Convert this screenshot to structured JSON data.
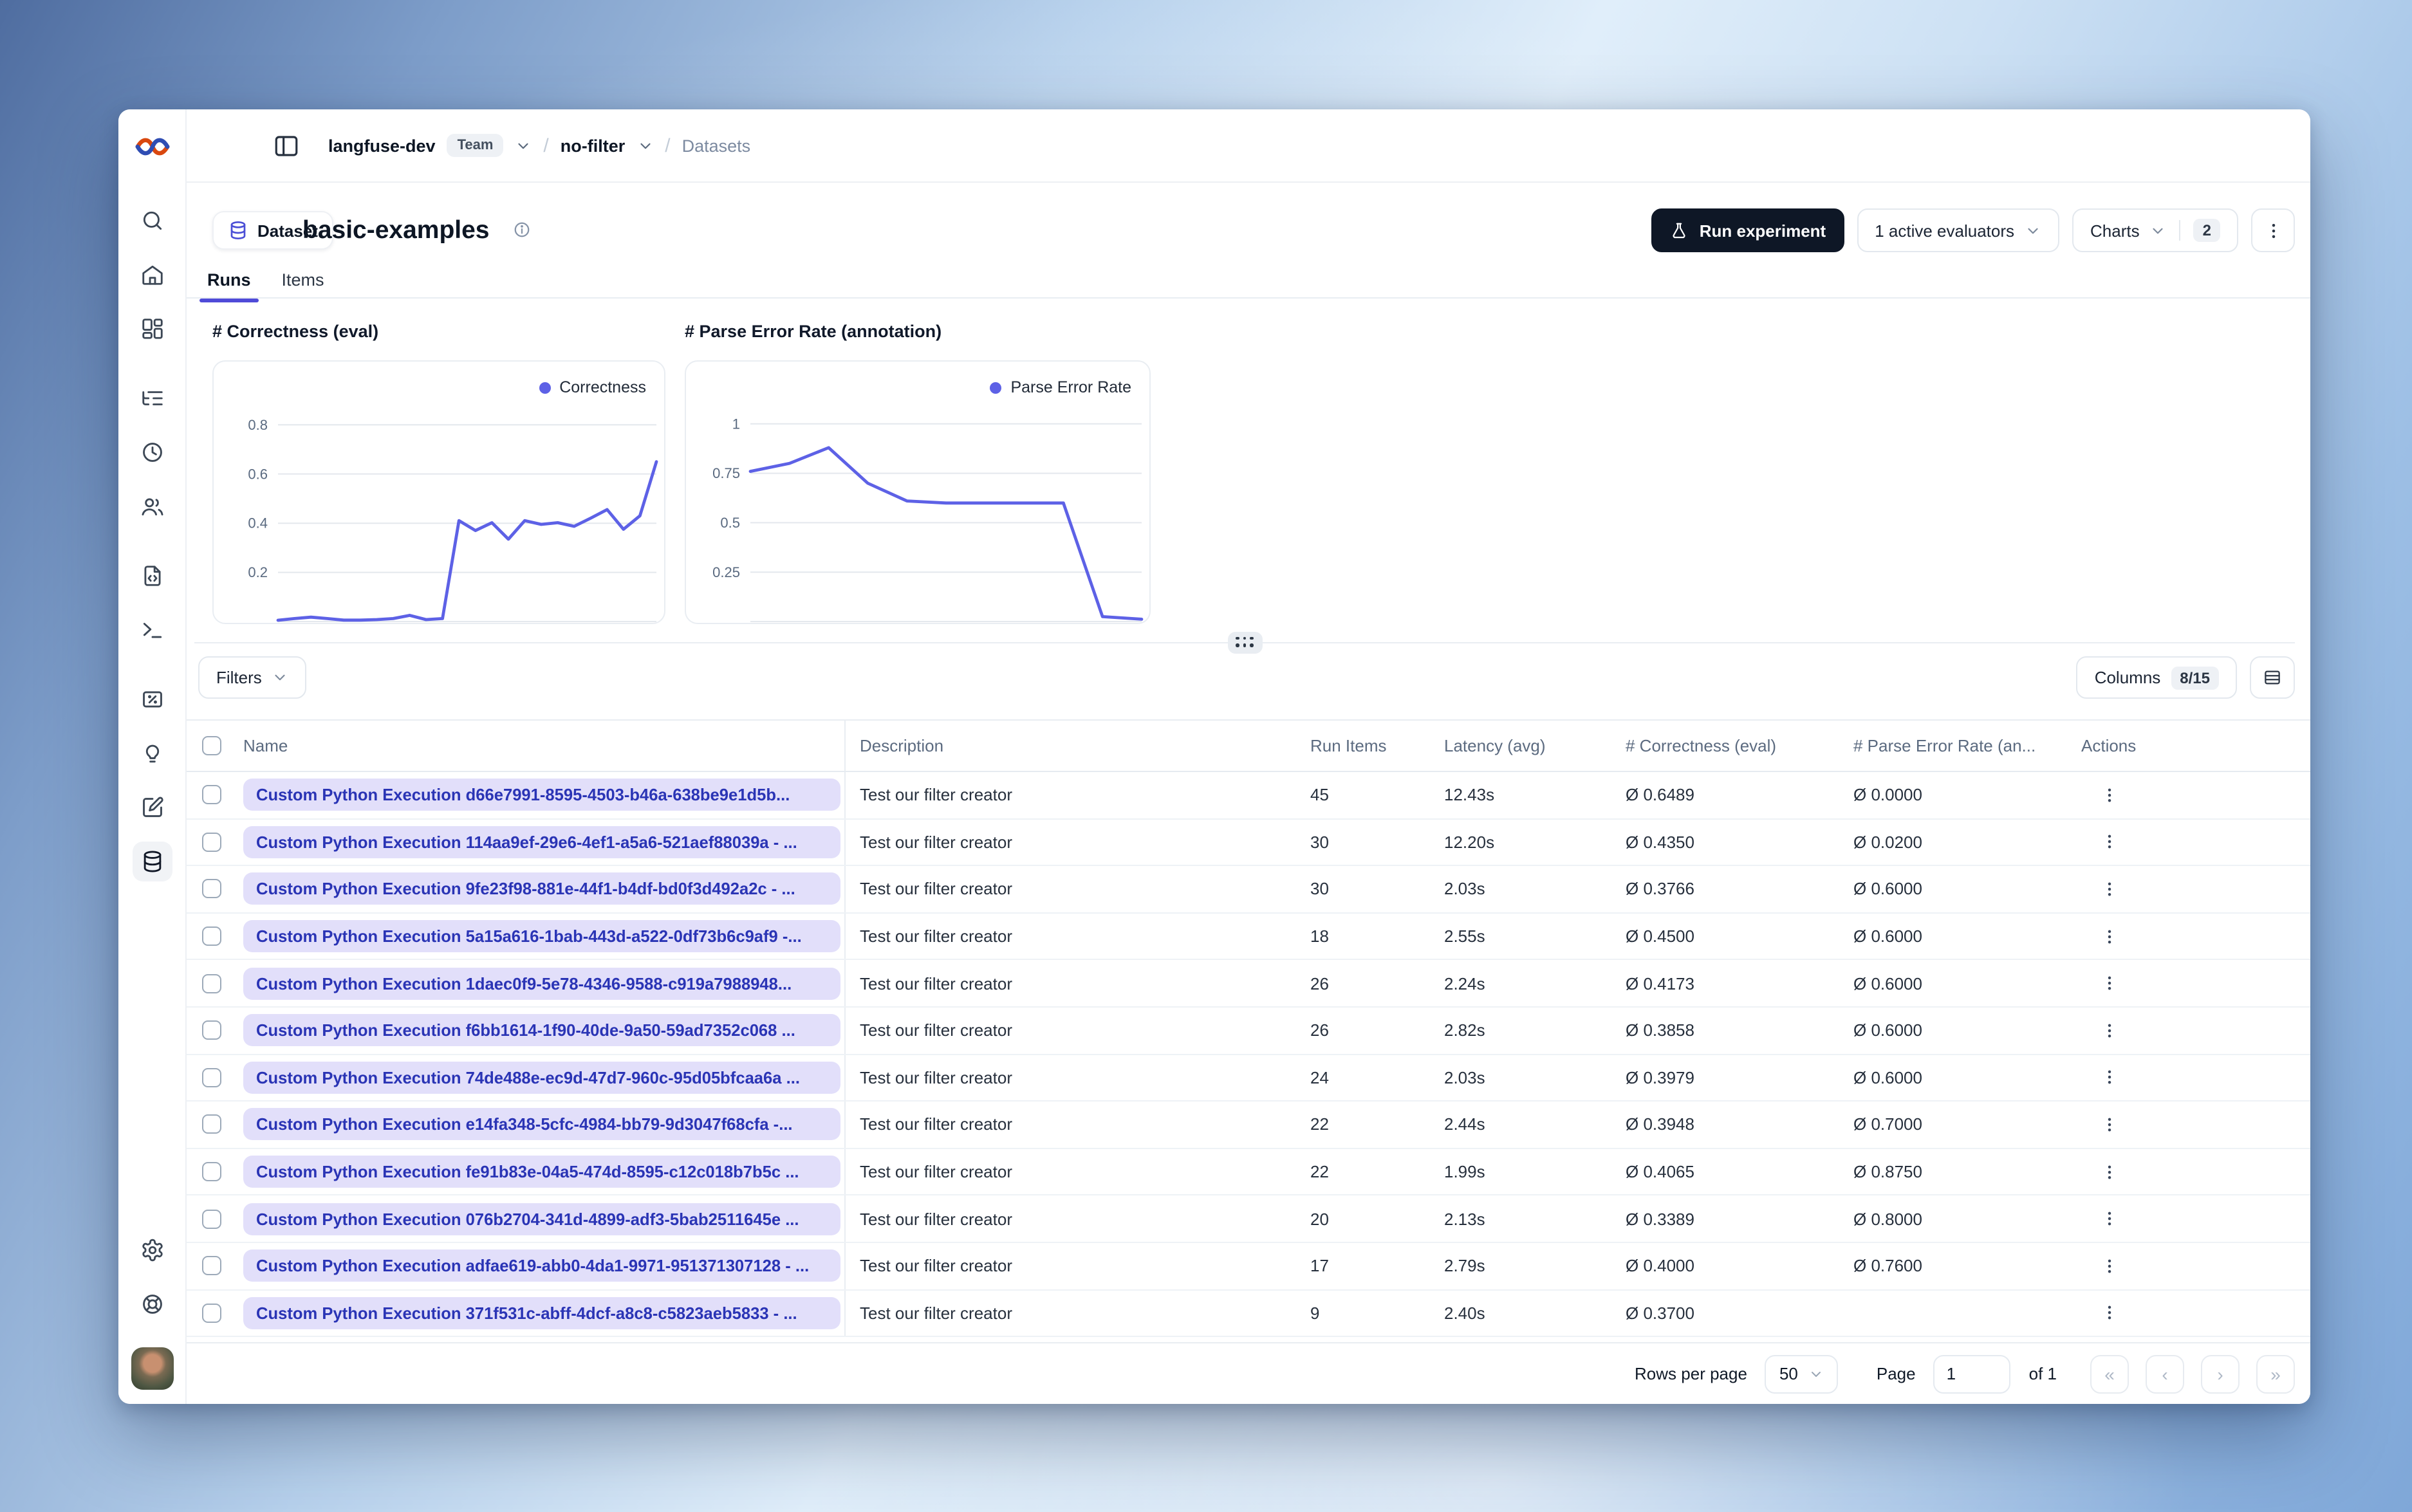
{
  "breadcrumb": {
    "org": "langfuse-dev",
    "org_badge": "Team",
    "project": "no-filter",
    "section": "Datasets",
    "slash": "/"
  },
  "header": {
    "entity_label": "Dataset",
    "title": "basic-examples",
    "run_experiment_label": "Run experiment",
    "evaluators_label": "1 active evaluators",
    "charts_label": "Charts",
    "charts_count": "2"
  },
  "tabs": [
    {
      "label": "Runs",
      "active": true
    },
    {
      "label": "Items",
      "active": false
    }
  ],
  "chart_data": [
    {
      "type": "line",
      "title": "# Correctness (eval)",
      "series": [
        {
          "name": "Correctness",
          "values": [
            0.005,
            0.012,
            0.018,
            0.012,
            0.006,
            0.006,
            0.008,
            0.012,
            0.025,
            0.008,
            0.012,
            0.41,
            0.37,
            0.402,
            0.335,
            0.41,
            0.395,
            0.402,
            0.387,
            0.42,
            0.455,
            0.375,
            0.43,
            0.65
          ]
        }
      ],
      "yticks": [
        0.2,
        0.4,
        0.6,
        0.8
      ],
      "ylim": [
        0,
        0.9
      ],
      "grid": true,
      "legend": "top-right",
      "xlabel": "",
      "ylabel": ""
    },
    {
      "type": "line",
      "title": "# Parse Error Rate (annotation)",
      "series": [
        {
          "name": "Parse Error Rate",
          "values": [
            0.76,
            0.8,
            0.88,
            0.7,
            0.61,
            0.6,
            0.6,
            0.6,
            0.6,
            0.025,
            0.012
          ]
        }
      ],
      "yticks": [
        0.25,
        0.5,
        0.75,
        1
      ],
      "ylim": [
        0,
        1.12
      ],
      "grid": true,
      "legend": "top-right",
      "xlabel": "",
      "ylabel": ""
    }
  ],
  "toolbar": {
    "filters_label": "Filters",
    "columns_label": "Columns",
    "columns_count": "8/15"
  },
  "table": {
    "columns": [
      "Name",
      "Description",
      "Run Items",
      "Latency (avg)",
      "# Correctness (eval)",
      "# Parse Error Rate (an...",
      "Actions"
    ],
    "rows": [
      {
        "name": "Custom Python Execution d66e7991-8595-4503-b46a-638be9e1d5b...",
        "description": "Test our filter creator",
        "run_items": "45",
        "latency": "12.43s",
        "correctness": "Ø 0.6489",
        "parse_error_rate": "Ø 0.0000"
      },
      {
        "name": "Custom Python Execution 114aa9ef-29e6-4ef1-a5a6-521aef88039a - ...",
        "description": "Test our filter creator",
        "run_items": "30",
        "latency": "12.20s",
        "correctness": "Ø 0.4350",
        "parse_error_rate": "Ø 0.0200"
      },
      {
        "name": "Custom Python Execution 9fe23f98-881e-44f1-b4df-bd0f3d492a2c - ...",
        "description": "Test our filter creator",
        "run_items": "30",
        "latency": "2.03s",
        "correctness": "Ø 0.3766",
        "parse_error_rate": "Ø 0.6000"
      },
      {
        "name": "Custom Python Execution 5a15a616-1bab-443d-a522-0df73b6c9af9 -...",
        "description": "Test our filter creator",
        "run_items": "18",
        "latency": "2.55s",
        "correctness": "Ø 0.4500",
        "parse_error_rate": "Ø 0.6000"
      },
      {
        "name": "Custom Python Execution 1daec0f9-5e78-4346-9588-c919a7988948...",
        "description": "Test our filter creator",
        "run_items": "26",
        "latency": "2.24s",
        "correctness": "Ø 0.4173",
        "parse_error_rate": "Ø 0.6000"
      },
      {
        "name": "Custom Python Execution f6bb1614-1f90-40de-9a50-59ad7352c068 ...",
        "description": "Test our filter creator",
        "run_items": "26",
        "latency": "2.82s",
        "correctness": "Ø 0.3858",
        "parse_error_rate": "Ø 0.6000"
      },
      {
        "name": "Custom Python Execution 74de488e-ec9d-47d7-960c-95d05bfcaa6a ...",
        "description": "Test our filter creator",
        "run_items": "24",
        "latency": "2.03s",
        "correctness": "Ø 0.3979",
        "parse_error_rate": "Ø 0.6000"
      },
      {
        "name": "Custom Python Execution e14fa348-5cfc-4984-bb79-9d3047f68cfa -...",
        "description": "Test our filter creator",
        "run_items": "22",
        "latency": "2.44s",
        "correctness": "Ø 0.3948",
        "parse_error_rate": "Ø 0.7000"
      },
      {
        "name": "Custom Python Execution fe91b83e-04a5-474d-8595-c12c018b7b5c ...",
        "description": "Test our filter creator",
        "run_items": "22",
        "latency": "1.99s",
        "correctness": "Ø 0.4065",
        "parse_error_rate": "Ø 0.8750"
      },
      {
        "name": "Custom Python Execution 076b2704-341d-4899-adf3-5bab2511645e ...",
        "description": "Test our filter creator",
        "run_items": "20",
        "latency": "2.13s",
        "correctness": "Ø 0.3389",
        "parse_error_rate": "Ø 0.8000"
      },
      {
        "name": "Custom Python Execution adfae619-abb0-4da1-9971-951371307128 - ...",
        "description": "Test our filter creator",
        "run_items": "17",
        "latency": "2.79s",
        "correctness": "Ø 0.4000",
        "parse_error_rate": "Ø 0.7600"
      },
      {
        "name": "Custom Python Execution 371f531c-abff-4dcf-a8c8-c5823aeb5833 - ...",
        "description": "Test our filter creator",
        "run_items": "9",
        "latency": "2.40s",
        "correctness": "Ø 0.3700",
        "parse_error_rate": ""
      }
    ]
  },
  "pagination": {
    "rows_per_page_label": "Rows per page",
    "rows_per_page": "50",
    "page_label": "Page",
    "page": "1",
    "of_label": "of 1",
    "first": "«",
    "prev": "‹",
    "next": "›",
    "last": "»"
  },
  "sidebar": {
    "items": [
      {
        "icon": "search",
        "name": "search"
      },
      {
        "icon": "home",
        "name": "home"
      },
      {
        "icon": "dashboard",
        "name": "dashboards"
      },
      {
        "icon": "list-tree",
        "name": "tracing",
        "group": true
      },
      {
        "icon": "clock",
        "name": "sessions"
      },
      {
        "icon": "users",
        "name": "users"
      },
      {
        "icon": "file-code",
        "name": "prompts",
        "group": true
      },
      {
        "icon": "terminal",
        "name": "playground"
      },
      {
        "icon": "square-percent",
        "name": "evaluation",
        "group": true
      },
      {
        "icon": "lightbulb",
        "name": "annotation-queues"
      },
      {
        "icon": "square-pen",
        "name": "llm-as-a-judge"
      },
      {
        "icon": "database",
        "name": "datasets",
        "active": true
      }
    ],
    "bottom": [
      {
        "icon": "settings",
        "name": "settings"
      },
      {
        "icon": "lifebuoy",
        "name": "support"
      }
    ]
  },
  "colors": {
    "accent": "#4f4bd8",
    "line": "#5d61e6",
    "pill_bg": "#e2dffa",
    "pill_text": "#2a34b5",
    "grid": "#e4e8ed",
    "tick_label": "#5a6a80"
  }
}
